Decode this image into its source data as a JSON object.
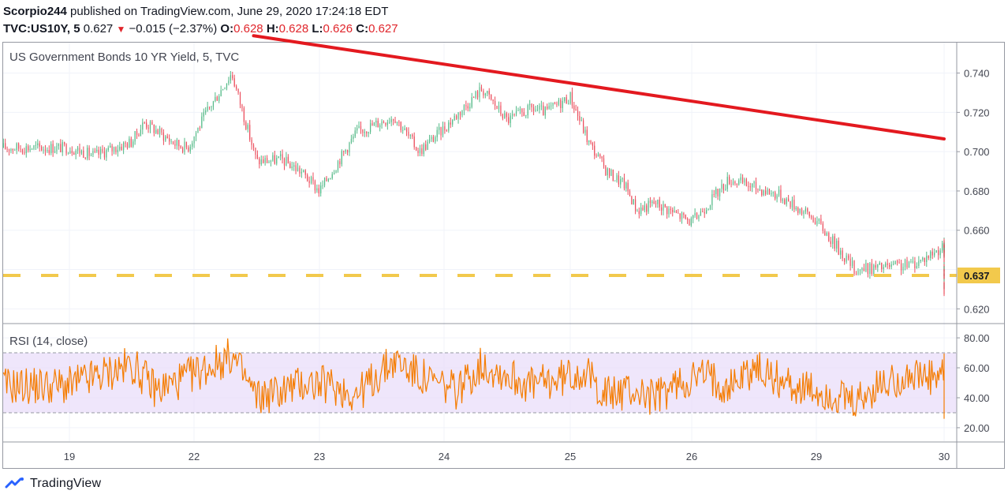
{
  "header": {
    "author": "Scorpio244",
    "published_text": "published on TradingView.com, June 29, 2020 17:24:18 EDT"
  },
  "ohlc": {
    "symbol": "TVC:US10Y, 5",
    "last": "0.627",
    "change_arrow": "▼",
    "change": "−0.015 (−2.37%)",
    "o_label": "O:",
    "o_value": "0.628",
    "h_label": "H:",
    "h_value": "0.628",
    "l_label": "L:",
    "l_value": "0.626",
    "c_label": "C:",
    "c_value": "0.627"
  },
  "footer": {
    "brand": "TradingView",
    "logo_icon": "tradingview-logo-icon"
  },
  "colors": {
    "candle_up": "#53b987",
    "candle_down": "#eb4d5c",
    "trendline": "#e3191f",
    "support_line": "#f2c94c",
    "rsi_line": "#f57c00",
    "rsi_band": "#e9ddfa",
    "price_tag": "#f2c94c"
  },
  "chart_data": [
    {
      "type": "candlestick",
      "title": "US Government Bonds 10 YR Yield, 5, TVC",
      "x_ticks": [
        "19",
        "22",
        "23",
        "24",
        "25",
        "26",
        "29",
        "30"
      ],
      "y_ticks": [
        "0.740",
        "0.720",
        "0.700",
        "0.680",
        "0.660",
        "0.620"
      ],
      "ylim": [
        0.6125,
        0.7555
      ],
      "price_path_x": [
        0,
        0.2,
        0.5,
        0.6,
        0.85,
        0.95,
        1.1,
        1.3,
        1.5,
        1.7,
        1.85,
        2.0,
        2.3,
        2.6,
        2.8,
        3.0,
        3.3,
        3.5,
        3.7,
        3.8,
        4.0,
        4.15,
        4.3,
        4.45,
        4.55,
        4.7,
        5.0,
        5.3,
        5.7,
        6.0,
        6.3,
        6.7,
        6.8,
        7.0,
        7.3,
        7.5,
        7.72
      ],
      "price_path_y": [
        0.702,
        0.698,
        0.705,
        0.715,
        0.704,
        0.702,
        0.72,
        0.74,
        0.695,
        0.696,
        0.69,
        0.68,
        0.71,
        0.718,
        0.7,
        0.712,
        0.732,
        0.716,
        0.722,
        0.72,
        0.728,
        0.705,
        0.69,
        0.683,
        0.67,
        0.674,
        0.664,
        0.686,
        0.678,
        0.665,
        0.64,
        0.642,
        0.644,
        0.652,
        0.65,
        0.64,
        0.627
      ],
      "trendline": {
        "x1": 1.475,
        "y1": 0.759,
        "x2": 7.85,
        "y2": 0.7065,
        "color": "#e3191f"
      },
      "support_line": {
        "value": 0.637,
        "label": "0.637",
        "style": "dashed"
      },
      "last_price": 0.627,
      "grid": true
    },
    {
      "type": "line",
      "title": "RSI (14, close)",
      "y_ticks": [
        "80.00",
        "60.00",
        "40.00",
        "20.00"
      ],
      "ylim": [
        11,
        89
      ],
      "band": [
        30,
        70
      ],
      "rsi_path_x": [
        0,
        0.25,
        0.5,
        0.7,
        0.9,
        1.1,
        1.3,
        1.5,
        1.7,
        1.9,
        2.1,
        2.3,
        2.6,
        2.9,
        3.1,
        3.3,
        3.5,
        3.7,
        3.9,
        4.1,
        4.3,
        4.5,
        4.7,
        4.9,
        5.1,
        5.3,
        5.5,
        5.7,
        5.9,
        6.1,
        6.3,
        6.5,
        6.7,
        6.9,
        7.1,
        7.3,
        7.5,
        7.72
      ],
      "rsi_path_y": [
        48,
        55,
        62,
        45,
        52,
        60,
        68,
        40,
        45,
        50,
        48,
        42,
        65,
        50,
        45,
        62,
        55,
        48,
        52,
        58,
        42,
        45,
        40,
        50,
        55,
        48,
        60,
        52,
        45,
        42,
        35,
        48,
        55,
        52,
        58,
        48,
        42,
        38
      ],
      "grid": true
    }
  ]
}
